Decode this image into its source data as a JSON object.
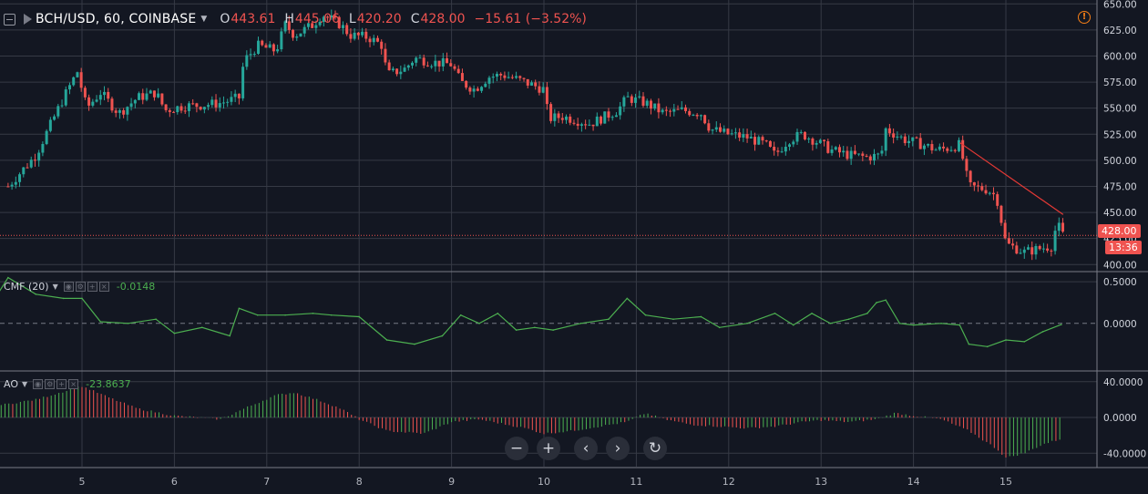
{
  "header": {
    "symbol": "BCH/USD, 60, COINBASE",
    "open_label": "O",
    "open": "443.61",
    "high_label": "H",
    "high": "445.06",
    "low_label": "L",
    "low": "420.20",
    "close_label": "C",
    "close": "428.00",
    "change": "−15.61 (−3.52%)",
    "alert_icon": "!"
  },
  "price_axis": {
    "ticks": [
      "650.00",
      "625.00",
      "600.00",
      "575.00",
      "550.00",
      "525.00",
      "500.00",
      "475.00",
      "450.00",
      "425.00",
      "400.00"
    ]
  },
  "last_price_tag": "428.00",
  "countdown_tag": "13:36",
  "cmf": {
    "name": "CMF (20)",
    "value": "-0.0148",
    "ticks": [
      "0.5000",
      "0.0000"
    ]
  },
  "ao": {
    "name": "AO",
    "value": "-23.8637",
    "ticks": [
      "40.0000",
      "0.0000",
      "-40.0000"
    ]
  },
  "time_axis": [
    "5",
    "6",
    "7",
    "8",
    "9",
    "10",
    "11",
    "12",
    "13",
    "14",
    "15"
  ],
  "controls": {
    "zoom_out": "−",
    "zoom_in": "+",
    "scroll_left": "‹",
    "scroll_right": "›",
    "reset": "↻"
  },
  "colors": {
    "bg": "#131722",
    "up": "#26a69a",
    "down": "#ef5350",
    "cmf_line": "#4caf50",
    "trend_line": "#e53935",
    "grid": "#363a45"
  },
  "chart_data": [
    {
      "type": "candlestick",
      "title": "BCH/USD, 60, COINBASE",
      "ylim": [
        395,
        652
      ],
      "x_ticks": [
        "5",
        "6",
        "7",
        "8",
        "9",
        "10",
        "11",
        "12",
        "13",
        "14",
        "15"
      ],
      "close_path": [
        [
          4.2,
          475
        ],
        [
          4.5,
          505
        ],
        [
          4.8,
          560
        ],
        [
          4.95,
          585
        ],
        [
          5.05,
          550
        ],
        [
          5.2,
          565
        ],
        [
          5.4,
          545
        ],
        [
          5.6,
          560
        ],
        [
          5.8,
          565
        ],
        [
          5.9,
          548
        ],
        [
          6.1,
          552
        ],
        [
          6.3,
          553
        ],
        [
          6.5,
          555
        ],
        [
          6.7,
          560
        ],
        [
          6.75,
          595
        ],
        [
          6.9,
          610
        ],
        [
          7.1,
          605
        ],
        [
          7.2,
          630
        ],
        [
          7.3,
          620
        ],
        [
          7.5,
          630
        ],
        [
          7.6,
          640
        ],
        [
          7.8,
          630
        ],
        [
          7.9,
          620
        ],
        [
          8.1,
          618
        ],
        [
          8.25,
          610
        ],
        [
          8.3,
          582
        ],
        [
          8.5,
          588
        ],
        [
          8.6,
          598
        ],
        [
          8.8,
          594
        ],
        [
          9.0,
          592
        ],
        [
          9.1,
          575
        ],
        [
          9.25,
          568
        ],
        [
          9.4,
          580
        ],
        [
          9.55,
          582
        ],
        [
          9.7,
          578
        ],
        [
          9.85,
          573
        ],
        [
          10.0,
          568
        ],
        [
          10.05,
          540
        ],
        [
          10.2,
          542
        ],
        [
          10.5,
          535
        ],
        [
          10.8,
          548
        ],
        [
          10.9,
          560
        ],
        [
          11.1,
          555
        ],
        [
          11.3,
          545
        ],
        [
          11.5,
          548
        ],
        [
          11.7,
          545
        ],
        [
          11.8,
          530
        ],
        [
          12.0,
          525
        ],
        [
          12.2,
          522
        ],
        [
          12.4,
          515
        ],
        [
          12.5,
          505
        ],
        [
          12.65,
          520
        ],
        [
          12.8,
          525
        ],
        [
          12.95,
          518
        ],
        [
          13.1,
          510
        ],
        [
          13.3,
          505
        ],
        [
          13.5,
          503
        ],
        [
          13.65,
          505
        ],
        [
          13.7,
          530
        ],
        [
          13.9,
          520
        ],
        [
          14.1,
          515
        ],
        [
          14.25,
          510
        ],
        [
          14.4,
          512
        ],
        [
          14.5,
          515
        ],
        [
          14.6,
          475
        ],
        [
          14.8,
          472
        ],
        [
          14.9,
          465
        ],
        [
          15.0,
          420
        ],
        [
          15.2,
          412
        ],
        [
          15.35,
          415
        ],
        [
          15.5,
          418
        ],
        [
          15.55,
          440
        ],
        [
          15.62,
          428
        ]
      ],
      "trend_line": [
        [
          14.5,
          517
        ],
        [
          15.62,
          448
        ]
      ],
      "last_price": 428.0
    },
    {
      "type": "line",
      "title": "CMF (20)",
      "ylim": [
        -0.55,
        0.6
      ],
      "x": [
        4.0,
        4.2,
        4.5,
        4.8,
        5.0,
        5.2,
        5.5,
        5.8,
        6.0,
        6.3,
        6.6,
        6.7,
        6.9,
        7.2,
        7.5,
        7.7,
        8.0,
        8.3,
        8.6,
        8.9,
        9.1,
        9.3,
        9.5,
        9.7,
        9.9,
        10.1,
        10.4,
        10.7,
        10.9,
        11.1,
        11.4,
        11.7,
        11.9,
        12.2,
        12.5,
        12.7,
        12.9,
        13.1,
        13.3,
        13.5,
        13.6,
        13.7,
        13.85,
        14.0,
        14.3,
        14.5,
        14.6,
        14.8,
        15.0,
        15.2,
        15.4,
        15.6
      ],
      "values": [
        0.2,
        0.55,
        0.35,
        0.3,
        0.3,
        0.02,
        0.0,
        0.05,
        -0.12,
        -0.05,
        -0.15,
        0.18,
        0.1,
        0.1,
        0.12,
        0.1,
        0.08,
        -0.2,
        -0.25,
        -0.15,
        0.1,
        0.0,
        0.12,
        -0.08,
        -0.05,
        -0.08,
        0.0,
        0.05,
        0.3,
        0.1,
        0.05,
        0.08,
        -0.05,
        0.0,
        0.12,
        -0.02,
        0.12,
        0.0,
        0.05,
        0.12,
        0.25,
        0.28,
        0.0,
        -0.02,
        0.0,
        -0.02,
        -0.25,
        -0.28,
        -0.2,
        -0.22,
        -0.1,
        -0.0148
      ]
    },
    {
      "type": "bar",
      "title": "AO",
      "ylim": [
        -55,
        50
      ],
      "x": [
        4.0,
        4.5,
        5.0,
        5.3,
        5.6,
        6.0,
        6.5,
        6.8,
        7.1,
        7.3,
        7.6,
        7.8,
        8.0,
        8.3,
        8.7,
        9.0,
        9.3,
        9.6,
        9.8,
        10.0,
        10.3,
        10.6,
        10.9,
        11.1,
        11.3,
        11.6,
        11.9,
        12.2,
        12.5,
        12.8,
        13.0,
        13.3,
        13.6,
        13.8,
        14.0,
        14.3,
        14.6,
        14.9,
        15.0,
        15.2,
        15.4,
        15.6
      ],
      "values": [
        12,
        20,
        35,
        22,
        10,
        2,
        -2,
        12,
        25,
        28,
        18,
        10,
        -2,
        -15,
        -18,
        -5,
        -2,
        -8,
        -12,
        -18,
        -15,
        -10,
        -5,
        5,
        -2,
        -8,
        -10,
        -12,
        -10,
        -5,
        -3,
        -5,
        -2,
        5,
        2,
        -2,
        -15,
        -35,
        -45,
        -40,
        -30,
        -23.86
      ]
    }
  ]
}
